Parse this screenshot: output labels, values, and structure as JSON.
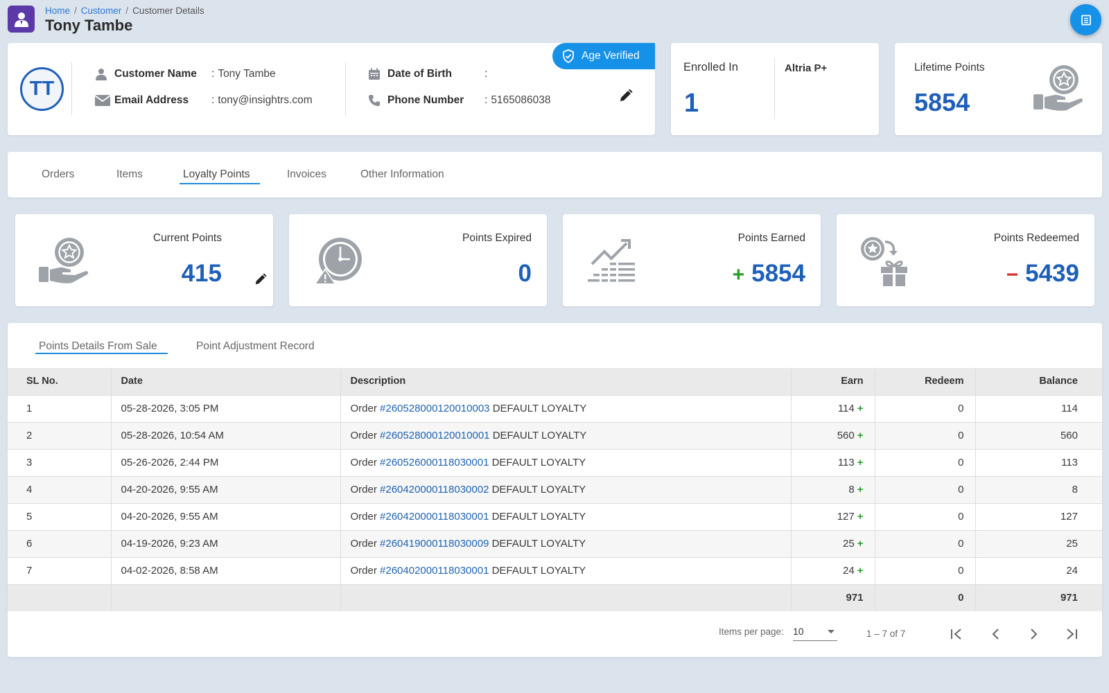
{
  "header": {
    "breadcrumb": {
      "home": "Home",
      "customer": "Customer",
      "current": "Customer Details",
      "separator": "/"
    },
    "title": "Tony Tambe"
  },
  "customer": {
    "initials": "TT",
    "name_label": "Customer Name",
    "name_value": "Tony Tambe",
    "email_label": "Email Address",
    "email_value": "tony@insightrs.com",
    "dob_label": "Date of Birth",
    "dob_value": "",
    "phone_label": "Phone Number",
    "phone_value": "5165086038",
    "colon": ":",
    "age_badge": "Age Verified"
  },
  "enrollment": {
    "label": "Enrolled In",
    "count": "1",
    "program": "Altria P+"
  },
  "lifetime": {
    "label": "Lifetime Points",
    "value": "5854"
  },
  "tabs": [
    {
      "label": "Orders"
    },
    {
      "label": "Items"
    },
    {
      "label": "Loyalty Points",
      "active": true
    },
    {
      "label": "Invoices"
    },
    {
      "label": "Other Information"
    }
  ],
  "stats": {
    "current": {
      "label": "Current Points",
      "value": "415"
    },
    "expired": {
      "label": "Points Expired",
      "value": "0"
    },
    "earned": {
      "label": "Points Earned",
      "sign": "+",
      "value": "5854"
    },
    "redeemed": {
      "label": "Points Redeemed",
      "sign": "−",
      "value": "5439"
    }
  },
  "subtabs": [
    {
      "label": "Points Details From Sale",
      "active": true
    },
    {
      "label": "Point Adjustment Record"
    }
  ],
  "table": {
    "columns": [
      "SL No.",
      "Date",
      "Description",
      "Earn",
      "Redeem",
      "Balance"
    ],
    "rows": [
      {
        "sl": "1",
        "date": "05-28-2026, 3:05 PM",
        "prefix": "Order",
        "order": "#260528000120010003",
        "suffix": "DEFAULT LOYALTY",
        "earn": "114",
        "redeem": "0",
        "balance": "114"
      },
      {
        "sl": "2",
        "date": "05-28-2026, 10:54 AM",
        "prefix": "Order",
        "order": "#260528000120010001",
        "suffix": "DEFAULT LOYALTY",
        "earn": "560",
        "redeem": "0",
        "balance": "560"
      },
      {
        "sl": "3",
        "date": "05-26-2026, 2:44 PM",
        "prefix": "Order",
        "order": "#260526000118030001",
        "suffix": "DEFAULT LOYALTY",
        "earn": "113",
        "redeem": "0",
        "balance": "113"
      },
      {
        "sl": "4",
        "date": "04-20-2026, 9:55 AM",
        "prefix": "Order",
        "order": "#260420000118030002",
        "suffix": "DEFAULT LOYALTY",
        "earn": "8",
        "redeem": "0",
        "balance": "8"
      },
      {
        "sl": "5",
        "date": "04-20-2026, 9:55 AM",
        "prefix": "Order",
        "order": "#260420000118030001",
        "suffix": "DEFAULT LOYALTY",
        "earn": "127",
        "redeem": "0",
        "balance": "127"
      },
      {
        "sl": "6",
        "date": "04-19-2026, 9:23 AM",
        "prefix": "Order",
        "order": "#260419000118030009",
        "suffix": "DEFAULT LOYALTY",
        "earn": "25",
        "redeem": "0",
        "balance": "25"
      },
      {
        "sl": "7",
        "date": "04-02-2026, 8:58 AM",
        "prefix": "Order",
        "order": "#260402000118030001",
        "suffix": "DEFAULT LOYALTY",
        "earn": "24",
        "redeem": "0",
        "balance": "24"
      }
    ],
    "earn_marker": "+",
    "totals": {
      "earn": "971",
      "redeem": "0",
      "balance": "971"
    }
  },
  "paginator": {
    "items_per_page_label": "Items per page:",
    "page_size": "10",
    "range": "1 – 7 of 7"
  },
  "icons": {
    "logo": "person-icon",
    "fab": "document-icon",
    "badge": "shield-check-icon",
    "colors": {
      "primary": "#1e5fb8",
      "accent": "#1591e8",
      "positive": "#2a9c2a",
      "negative": "#d9302b"
    }
  }
}
